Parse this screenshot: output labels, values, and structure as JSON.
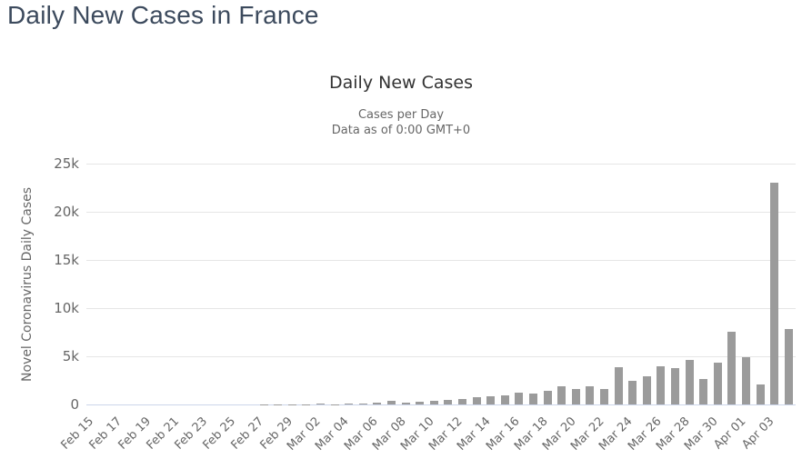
{
  "page": {
    "title": "Daily New Cases in France"
  },
  "chart": {
    "title": "Daily New Cases",
    "subtitle_line1": "Cases per Day",
    "subtitle_line2": "Data as of 0:00 GMT+0",
    "y_axis_title": "Novel Coronavirus Daily Cases"
  },
  "colors": {
    "page_title": "#3c4a5d",
    "chart_title": "#333333",
    "subtitle": "#666666",
    "axis_label": "#666666",
    "gridline": "#e6e6e6",
    "axis_line": "#ccd6eb",
    "bar": "#9b9b9b"
  },
  "chart_data": {
    "type": "bar",
    "title": "Daily New Cases",
    "subtitle": [
      "Cases per Day",
      "Data as of 0:00 GMT+0"
    ],
    "xlabel": "",
    "ylabel": "Novel Coronavirus Daily Cases",
    "ylim": [
      0,
      25000
    ],
    "y_ticks": [
      0,
      5000,
      10000,
      15000,
      20000,
      25000
    ],
    "y_tick_labels": [
      "0",
      "5k",
      "10k",
      "15k",
      "20k",
      "25k"
    ],
    "x_label_every": 2,
    "grid": true,
    "legend": false,
    "bar_color": "#9b9b9b",
    "categories": [
      "Feb 15",
      "Feb 16",
      "Feb 17",
      "Feb 18",
      "Feb 19",
      "Feb 20",
      "Feb 21",
      "Feb 22",
      "Feb 23",
      "Feb 24",
      "Feb 25",
      "Feb 26",
      "Feb 27",
      "Feb 28",
      "Feb 29",
      "Mar 01",
      "Mar 02",
      "Mar 03",
      "Mar 04",
      "Mar 05",
      "Mar 06",
      "Mar 07",
      "Mar 08",
      "Mar 09",
      "Mar 10",
      "Mar 11",
      "Mar 12",
      "Mar 13",
      "Mar 14",
      "Mar 15",
      "Mar 16",
      "Mar 17",
      "Mar 18",
      "Mar 19",
      "Mar 20",
      "Mar 21",
      "Mar 22",
      "Mar 23",
      "Mar 24",
      "Mar 25",
      "Mar 26",
      "Mar 27",
      "Mar 28",
      "Mar 29",
      "Mar 30",
      "Mar 31",
      "Apr 01",
      "Apr 02",
      "Apr 03",
      "Apr 04"
    ],
    "values": [
      0,
      0,
      0,
      0,
      0,
      0,
      0,
      0,
      0,
      0,
      2,
      3,
      20,
      19,
      43,
      30,
      61,
      21,
      73,
      138,
      190,
      336,
      177,
      286,
      372,
      497,
      595,
      785,
      838,
      924,
      1210,
      1097,
      1404,
      1861,
      1617,
      1847,
      1559,
      3838,
      2444,
      2931,
      3922,
      3809,
      4611,
      2599,
      4376,
      7578,
      4861,
      2116,
      23060,
      7788
    ]
  }
}
